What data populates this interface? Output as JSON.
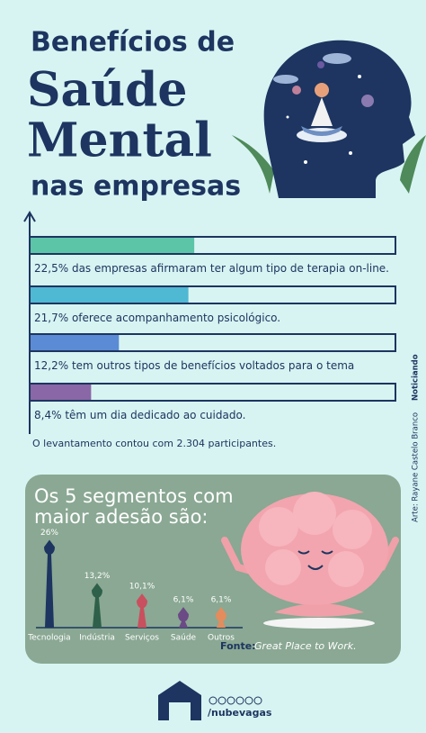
{
  "header": {
    "title_lines": [
      "Benefícios de",
      "Saúde",
      "Mental",
      "nas empresas"
    ]
  },
  "chart_data": [
    {
      "type": "hbar",
      "categories": [
        "das empresas afirmaram ter algum tipo de terapia on-line.",
        "oferece acompanhamento psicológico.",
        "tem outros tipos de benefícios voltados para o tema",
        "têm um dia dedicado ao cuidado."
      ],
      "values": [
        22.5,
        21.7,
        12.2,
        8.4
      ],
      "value_labels": [
        "22,5%",
        "21,7%",
        "12,2%",
        "8,4%"
      ],
      "colors": [
        "#5cc5a7",
        "#4fb8d3",
        "#5b8bd4",
        "#8a67a6"
      ],
      "xlim": [
        0,
        50
      ],
      "footnote": "O levantamento contou com 2.304 participantes."
    },
    {
      "type": "lollipop",
      "title": "Os 5 segmentos com maior adesão são:",
      "categories": [
        "Tecnologia",
        "Indústria",
        "Serviços",
        "Saúde",
        "Outros"
      ],
      "values": [
        26,
        13.2,
        10.1,
        6.1,
        6.1
      ],
      "value_labels": [
        "26%",
        "13,2%",
        "10,1%",
        "6,1%",
        "6,1%"
      ],
      "colors": [
        "#1d3560",
        "#2f6049",
        "#c9505e",
        "#6b4a85",
        "#e48c5c"
      ],
      "ylim": [
        0,
        28
      ]
    }
  ],
  "source": {
    "label": "Fonte:",
    "text": "Great Place to Work."
  },
  "credit": {
    "art": "Arte: Rayane Castelo Branco",
    "brand": "Noticiando"
  },
  "footer": {
    "handle": "/nubevagas"
  }
}
